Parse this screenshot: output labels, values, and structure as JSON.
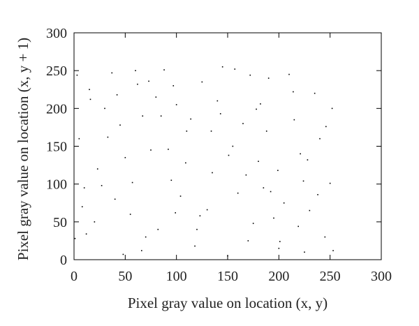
{
  "chart_data": {
    "type": "scatter",
    "title": "",
    "xlabel": "Pixel gray value on location (x, y)",
    "ylabel": "Pixel gray value on location (x, y + 1)",
    "xlim": [
      0,
      300
    ],
    "ylim": [
      0,
      300
    ],
    "xticks": [
      0,
      50,
      100,
      150,
      200,
      250,
      300
    ],
    "yticks": [
      0,
      50,
      100,
      150,
      200,
      250,
      300
    ],
    "grid": false,
    "legend": "none",
    "point_color": "#000000",
    "series": [
      {
        "points": [
          [
            12,
            34
          ],
          [
            200,
            15
          ],
          [
            97,
            230
          ],
          [
            45,
            178
          ],
          [
            250,
            101
          ],
          [
            3,
            244
          ],
          [
            130,
            66
          ],
          [
            178,
            199
          ],
          [
            66,
            12
          ],
          [
            221,
            140
          ],
          [
            88,
            251
          ],
          [
            160,
            88
          ],
          [
            23,
            120
          ],
          [
            245,
            30
          ],
          [
            110,
            170
          ],
          [
            190,
            240
          ],
          [
            55,
            60
          ],
          [
            140,
            210
          ],
          [
            205,
            75
          ],
          [
            10,
            95
          ],
          [
            75,
            145
          ],
          [
            235,
            220
          ],
          [
            150,
            5
          ],
          [
            30,
            200
          ],
          [
            180,
            130
          ],
          [
            120,
            40
          ],
          [
            60,
            250
          ],
          [
            215,
            185
          ],
          [
            95,
            105
          ],
          [
            170,
            25
          ],
          [
            5,
            160
          ],
          [
            240,
            160
          ],
          [
            125,
            235
          ],
          [
            40,
            80
          ],
          [
            195,
            55
          ],
          [
            85,
            190
          ],
          [
            155,
            150
          ],
          [
            225,
            10
          ],
          [
            15,
            225
          ],
          [
            135,
            115
          ],
          [
            70,
            30
          ],
          [
            210,
            245
          ],
          [
            100,
            205
          ],
          [
            50,
            135
          ],
          [
            165,
            180
          ],
          [
            230,
            65
          ],
          [
            20,
            50
          ],
          [
            145,
            255
          ],
          [
            185,
            95
          ],
          [
            80,
            215
          ],
          [
            252,
            200
          ],
          [
            118,
            18
          ],
          [
            33,
            162
          ],
          [
            199,
            118
          ],
          [
            62,
            232
          ],
          [
            175,
            48
          ],
          [
            8,
            70
          ],
          [
            228,
            132
          ],
          [
            104,
            84
          ],
          [
            143,
            193
          ],
          [
            48,
            7
          ],
          [
            188,
            170
          ],
          [
            92,
            146
          ],
          [
            214,
            222
          ],
          [
            27,
            98
          ],
          [
            157,
            252
          ],
          [
            238,
            86
          ],
          [
            67,
            190
          ],
          [
            123,
            58
          ],
          [
            201,
            24
          ],
          [
            16,
            212
          ],
          [
            168,
            112
          ],
          [
            82,
            40
          ],
          [
            246,
            176
          ],
          [
            109,
            128
          ],
          [
            37,
            247
          ],
          [
            182,
            206
          ],
          [
            57,
            102
          ],
          [
            219,
            44
          ],
          [
            134,
            170
          ],
          [
            1,
            28
          ],
          [
            192,
            90
          ],
          [
            73,
            236
          ],
          [
            151,
            138
          ],
          [
            253,
            12
          ],
          [
            99,
            62
          ],
          [
            42,
            218
          ],
          [
            172,
            244
          ],
          [
            114,
            186
          ],
          [
            224,
            104
          ]
        ]
      }
    ]
  }
}
